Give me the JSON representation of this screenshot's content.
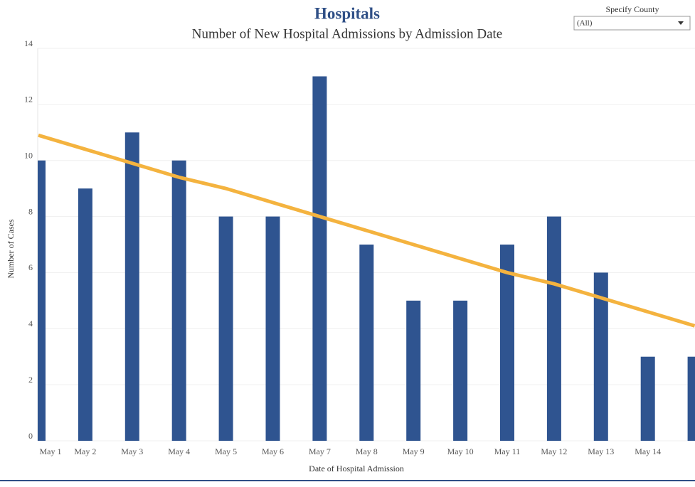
{
  "chart_data": {
    "type": "bar",
    "title": "Hospitals",
    "subtitle": "Number of New Hospital Admissions by Admission Date",
    "filter_label": "Specify County",
    "filter_value": "(All)",
    "x_label": "Date of Hospital Admission",
    "y_label": "Number of Cases",
    "categories": [
      "May 1",
      "May 2",
      "May 3",
      "May 4",
      "May 5",
      "May 6",
      "May 7",
      "May 8",
      "May 9",
      "May 10",
      "May 11",
      "May 12",
      "May 13",
      "May 14",
      null
    ],
    "values": [
      10,
      9,
      11,
      10,
      8,
      8,
      13,
      7,
      5,
      5,
      7,
      8,
      6,
      3,
      3
    ],
    "color": "#2f5490",
    "trend": {
      "color": "#f4b33f",
      "values": [
        10.9,
        10.4,
        9.9,
        9.4,
        9.0,
        8.5,
        8.0,
        7.5,
        7.0,
        6.5,
        6.0,
        5.6,
        5.1,
        4.6,
        4.1
      ]
    },
    "ylim": [
      0,
      14
    ],
    "yticks": [
      0,
      2,
      4,
      6,
      8,
      10,
      12,
      14
    ],
    "grid": true
  }
}
